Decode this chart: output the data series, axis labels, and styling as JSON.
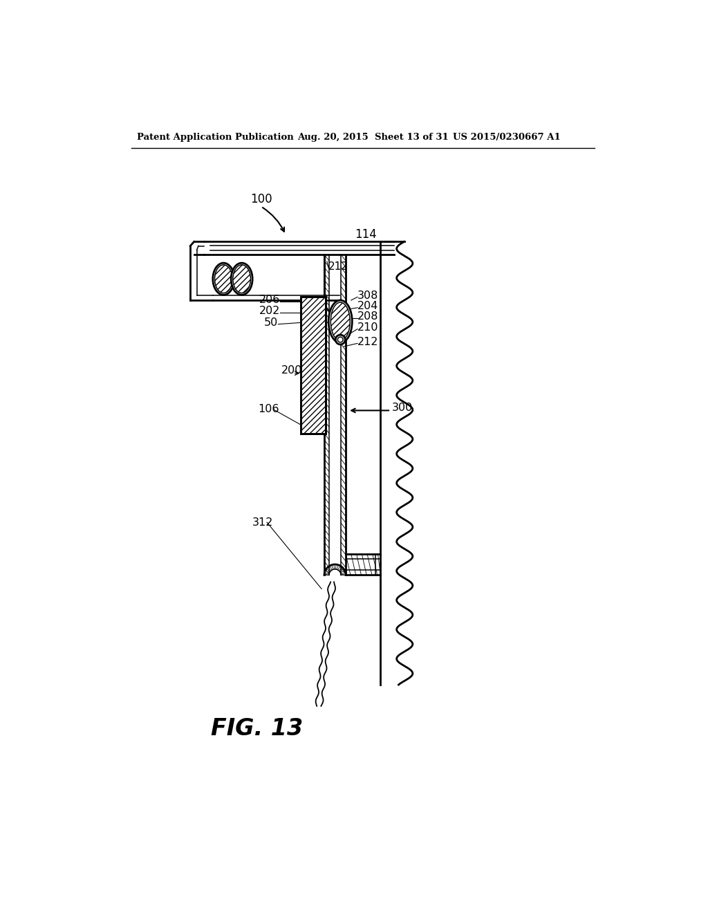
{
  "bg_color": "#ffffff",
  "line_color": "#000000",
  "header_left": "Patent Application Publication",
  "header_mid": "Aug. 20, 2015  Sheet 13 of 31",
  "header_right": "US 2015/0230667 A1",
  "fig_label": "FIG. 13"
}
